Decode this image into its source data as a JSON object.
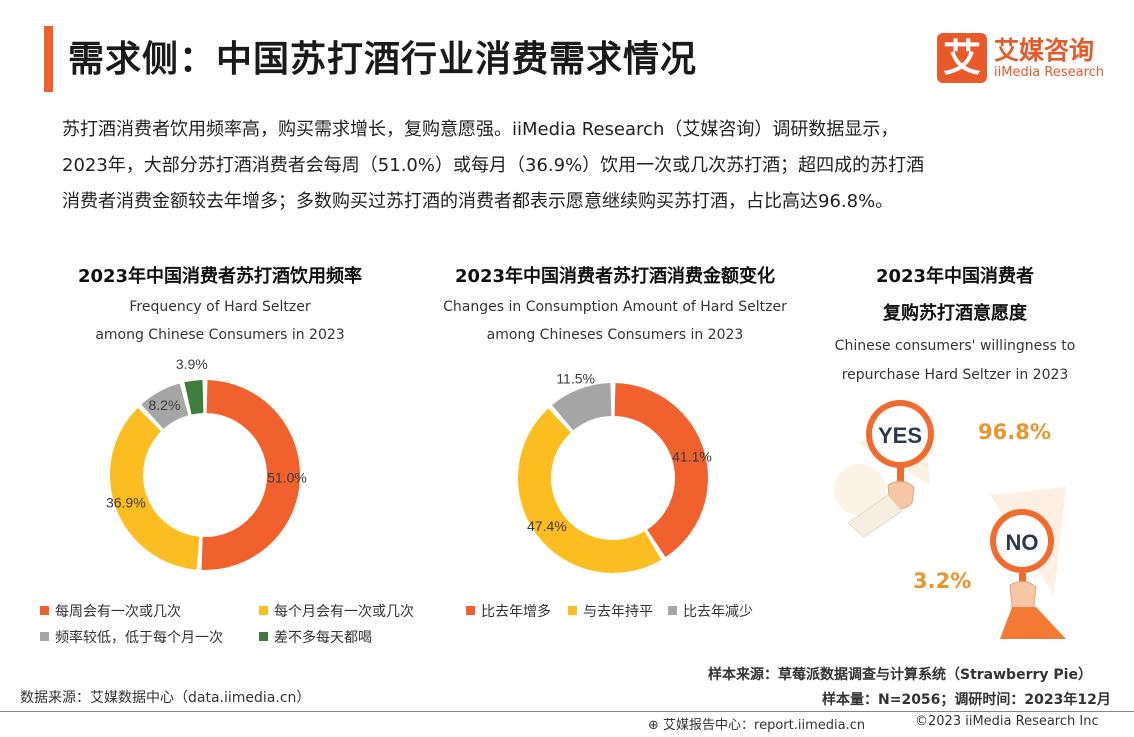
{
  "header": {
    "title": "需求侧：中国苏打酒行业消费需求情况",
    "logo_mark": "艾",
    "logo_cn": "艾媒咨询",
    "logo_en": "iiMedia Research"
  },
  "intro": {
    "line1": "苏打酒消费者饮用频率高，购买需求增长，复购意愿强。iiMedia Research（艾媒咨询）调研数据显示，",
    "line2": "2023年，大部分苏打酒消费者会每周（51.0%）或每月（36.9%）饮用一次或几次苏打酒；超四成的苏打酒",
    "line3": "消费者消费金额较去年增多；多数购买过苏打酒的消费者都表示愿意继续购买苏打酒，占比高达96.8%。"
  },
  "colors": {
    "orange": "#f0612d",
    "yellow": "#fbbd1f",
    "gray": "#a6a6a6",
    "green": "#3f7d3c",
    "pct": "#e8952c"
  },
  "chart1": {
    "title": "2023年中国消费者苏打酒饮用频率",
    "subtitle1": "Frequency of Hard Seltzer",
    "subtitle2": "among Chinese Consumers in 2023",
    "legend": [
      "每周会有一次或几次",
      "每个月会有一次或几次",
      "频率较低，低于每个月一次",
      "差不多每天都喝"
    ]
  },
  "chart2": {
    "title": "2023年中国消费者苏打酒消费金额变化",
    "subtitle1": "Changes in Consumption Amount of Hard Seltzer",
    "subtitle2": "among Chineses Consumers in 2023",
    "legend": [
      "比去年增多",
      "与去年持平",
      "比去年减少"
    ]
  },
  "chart3": {
    "title1": "2023年中国消费者",
    "title2": "复购苏打酒意愿度",
    "subtitle1": "Chinese consumers' willingness to",
    "subtitle2": "repurchase Hard Seltzer in 2023",
    "yes_label": "YES",
    "no_label": "NO",
    "yes_pct": "96.8%",
    "no_pct": "3.2%"
  },
  "chart_data": [
    {
      "type": "pie",
      "title": "2023年中国消费者苏打酒饮用频率",
      "categories": [
        "每周会有一次或几次",
        "每个月会有一次或几次",
        "频率较低，低于每个月一次",
        "差不多每天都喝"
      ],
      "values": [
        51.0,
        36.9,
        8.2,
        3.9
      ],
      "labels": [
        "51.0%",
        "36.9%",
        "8.2%",
        "3.9%"
      ],
      "colors": [
        "#f0612d",
        "#fbbd1f",
        "#a6a6a6",
        "#3f7d3c"
      ],
      "legend": "bottom"
    },
    {
      "type": "pie",
      "title": "2023年中国消费者苏打酒消费金额变化",
      "categories": [
        "比去年增多",
        "与去年持平",
        "比去年减少"
      ],
      "values": [
        41.1,
        47.4,
        11.5
      ],
      "labels": [
        "41.1%",
        "47.4%",
        "11.5%"
      ],
      "colors": [
        "#f0612d",
        "#fbbd1f",
        "#a6a6a6"
      ],
      "legend": "bottom"
    },
    {
      "type": "pie",
      "title": "2023年中国消费者复购苏打酒意愿度",
      "categories": [
        "YES",
        "NO"
      ],
      "values": [
        96.8,
        3.2
      ],
      "labels": [
        "96.8%",
        "3.2%"
      ]
    }
  ],
  "footer": {
    "source_left": "数据来源：艾媒数据中心（data.iimedia.cn）",
    "sample_source": "样本来源：草莓派数据调查与计算系统（Strawberry Pie）",
    "sample_size": "样本量：N=2056；调研时间：2023年12月",
    "report_center": "艾媒报告中心：report.iimedia.cn",
    "copyright": "©2023  iiMedia Research  Inc"
  }
}
